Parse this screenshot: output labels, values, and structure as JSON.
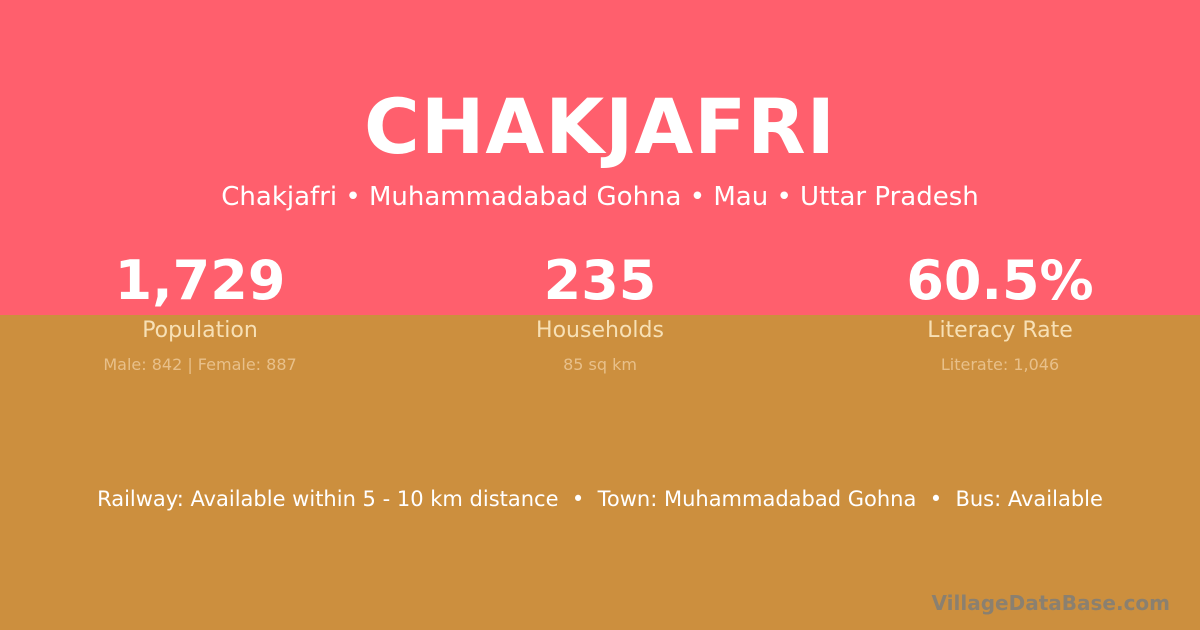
{
  "colors": {
    "top_band": "#FF5F6D",
    "bottom_band": "#CC8F3E"
  },
  "title": "CHAKJAFRI",
  "subtitle": "Chakjafri • Muhammadabad Gohna • Mau • Uttar Pradesh",
  "stats": [
    {
      "value": "1,729",
      "label": "Population",
      "detail": "Male: 842 | Female: 887"
    },
    {
      "value": "235",
      "label": "Households",
      "detail": "85 sq km"
    },
    {
      "value": "60.5%",
      "label": "Literacy Rate",
      "detail": "Literate: 1,046"
    }
  ],
  "facilities": "Railway: Available within 5 - 10 km distance  •  Town: Muhammadabad Gohna  •  Bus: Available",
  "brand": "VillageDataBase.com"
}
